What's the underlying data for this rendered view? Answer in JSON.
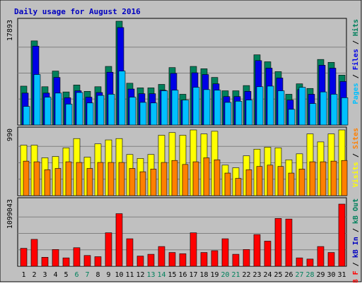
{
  "colors": {
    "background": "#C0C0C0",
    "border": "#000000",
    "grid": "#808080",
    "title": "#0000C0",
    "hits": "#00805C",
    "files": "#0000E6",
    "pages": "#00C0FF",
    "visits": "#FFFF00",
    "sites": "#FF8000",
    "kb_out": "#00805C",
    "kb_in": "#0000C0",
    "kb_f": "#FF0000",
    "weekend_day": "#00805C",
    "weekday": "#000000"
  },
  "chart_data": {
    "type": "bar",
    "title": "Daily usage for August 2016",
    "categories": [
      "1",
      "2",
      "3",
      "4",
      "5",
      "6",
      "7",
      "8",
      "9",
      "10",
      "11",
      "12",
      "13",
      "14",
      "15",
      "16",
      "17",
      "18",
      "19",
      "20",
      "21",
      "22",
      "23",
      "24",
      "25",
      "26",
      "27",
      "28",
      "29",
      "30",
      "31"
    ],
    "weekend_days": [
      "6",
      "7",
      "13",
      "14",
      "20",
      "21",
      "27",
      "28"
    ],
    "panels": [
      {
        "max_label": "17893",
        "ylim": [
          0,
          17893
        ],
        "right_label": [
          {
            "text": "Pages",
            "color_key": "pages"
          },
          {
            "text": " / ",
            "color_key": "weekday"
          },
          {
            "text": "Files",
            "color_key": "files"
          },
          {
            "text": " / ",
            "color_key": "weekday"
          },
          {
            "text": "Hits",
            "color_key": "hits"
          }
        ],
        "series": [
          {
            "name": "Hits",
            "color_key": "hits",
            "values": [
              6700,
              14500,
              6600,
              9300,
              5700,
              6900,
              5800,
              6600,
              10100,
              17893,
              7200,
              6400,
              6400,
              7000,
              9900,
              5300,
              10100,
              9700,
              8200,
              5900,
              5900,
              6800,
              12100,
              10900,
              9200,
              5300,
              7100,
              6300,
              11300,
              10800,
              8600
            ]
          },
          {
            "name": "Files",
            "color_key": "files",
            "values": [
              5500,
              13600,
              5500,
              8200,
              4700,
              5900,
              4800,
              5600,
              9100,
              16800,
              6200,
              5400,
              5400,
              6000,
              8900,
              4300,
              9000,
              8700,
              7100,
              4900,
              4900,
              5800,
              11100,
              9800,
              8100,
              4300,
              6100,
              5300,
              10300,
              9800,
              7500
            ]
          },
          {
            "name": "Pages",
            "color_key": "pages",
            "values": [
              3200,
              8700,
              4800,
              5500,
              3600,
              5600,
              3800,
              5100,
              5300,
              9300,
              4800,
              3900,
              3800,
              5900,
              6000,
              4300,
              6500,
              6100,
              6000,
              3900,
              4100,
              4300,
              6600,
              6700,
              5900,
              2700,
              6500,
              3700,
              5700,
              5300,
              4700
            ]
          }
        ]
      },
      {
        "max_label": "990",
        "ylim": [
          0,
          990
        ],
        "right_label": [
          {
            "text": "Visits",
            "color_key": "visits"
          },
          {
            "text": " / ",
            "color_key": "weekday"
          },
          {
            "text": "Sites",
            "color_key": "sites"
          }
        ],
        "series": [
          {
            "name": "Visits",
            "color_key": "visits",
            "values": [
              760,
              760,
              570,
              590,
              720,
              860,
              580,
              780,
              840,
              860,
              620,
              560,
              620,
              910,
              950,
              910,
              990,
              930,
              970,
              460,
              420,
              600,
              700,
              730,
              720,
              540,
              630,
              930,
              810,
              930,
              990
            ]
          },
          {
            "name": "Sites",
            "color_key": "sites",
            "values": [
              520,
              510,
              390,
              410,
              510,
              500,
              410,
              500,
              500,
              500,
              410,
              360,
              400,
              500,
              530,
              470,
              510,
              570,
              540,
              340,
              260,
              390,
              440,
              460,
              440,
              340,
              400,
              510,
              510,
              520,
              530
            ]
          }
        ]
      },
      {
        "max_label": "1099043",
        "ylim": [
          0,
          1099043
        ],
        "right_label": [
          {
            "text": "kB F",
            "color_key": "kb_f"
          },
          {
            "text": " / ",
            "color_key": "weekday"
          },
          {
            "text": "kB In",
            "color_key": "kb_in"
          },
          {
            "text": " / ",
            "color_key": "weekday"
          },
          {
            "text": "kB Out",
            "color_key": "kb_out"
          }
        ],
        "series": [
          {
            "name": "kB F",
            "color_key": "kb_f",
            "values": [
              300000,
              450000,
              150000,
              280000,
              140000,
              310000,
              180000,
              160000,
              560000,
              880000,
              460000,
              170000,
              200000,
              330000,
              230000,
              210000,
              560000,
              230000,
              260000,
              460000,
              200000,
              280000,
              530000,
              420000,
              800000,
              790000,
              140000,
              120000,
              330000,
              230000,
              1040000
            ]
          }
        ]
      }
    ]
  }
}
